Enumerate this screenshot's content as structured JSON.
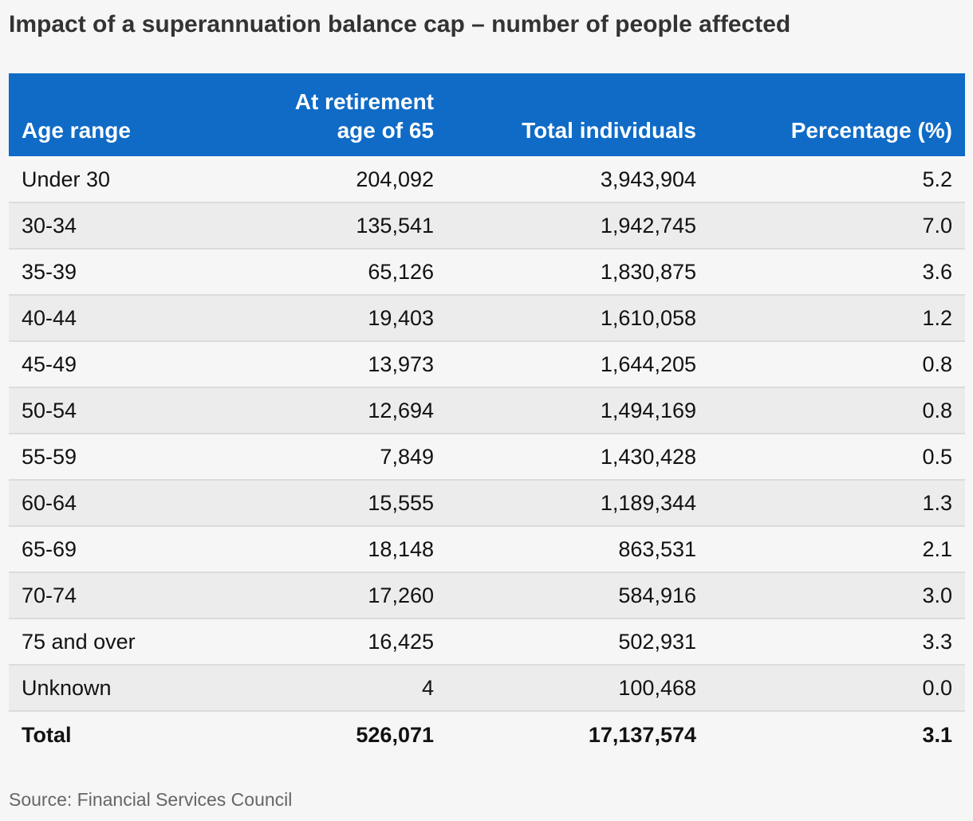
{
  "title": "Impact of a superannuation balance cap – number of people affected",
  "source": "Source: Financial Services Council",
  "colors": {
    "header_background": "#0f6bc6",
    "header_text": "#ffffff",
    "row_alt": "#ececec",
    "background": "#f6f6f6"
  },
  "chart_data": {
    "type": "table",
    "title": "Impact of a superannuation balance cap – number of people affected",
    "columns": [
      "Age range",
      "At retirement age of 65",
      "Total individuals",
      "Percentage (%)"
    ],
    "header": {
      "col1": "Age range",
      "col2_line1": "At retirement",
      "col2_line2": "age of 65",
      "col3": "Total individuals",
      "col4": "Percentage (%)"
    },
    "rows": [
      [
        "Under 30",
        "204,092",
        "3,943,904",
        "5.2"
      ],
      [
        "30-34",
        "135,541",
        "1,942,745",
        "7.0"
      ],
      [
        "35-39",
        "65,126",
        "1,830,875",
        "3.6"
      ],
      [
        "40-44",
        "19,403",
        "1,610,058",
        "1.2"
      ],
      [
        "45-49",
        "13,973",
        "1,644,205",
        "0.8"
      ],
      [
        "50-54",
        "12,694",
        "1,494,169",
        "0.8"
      ],
      [
        "55-59",
        "7,849",
        "1,430,428",
        "0.5"
      ],
      [
        "60-64",
        "15,555",
        "1,189,344",
        "1.3"
      ],
      [
        "65-69",
        "18,148",
        "863,531",
        "2.1"
      ],
      [
        "70-74",
        "17,260",
        "584,916",
        "3.0"
      ],
      [
        "75 and over",
        "16,425",
        "502,931",
        "3.3"
      ],
      [
        "Unknown",
        "4",
        "100,468",
        "0.0"
      ]
    ],
    "total": [
      "Total",
      "526,071",
      "17,137,574",
      "3.1"
    ]
  }
}
